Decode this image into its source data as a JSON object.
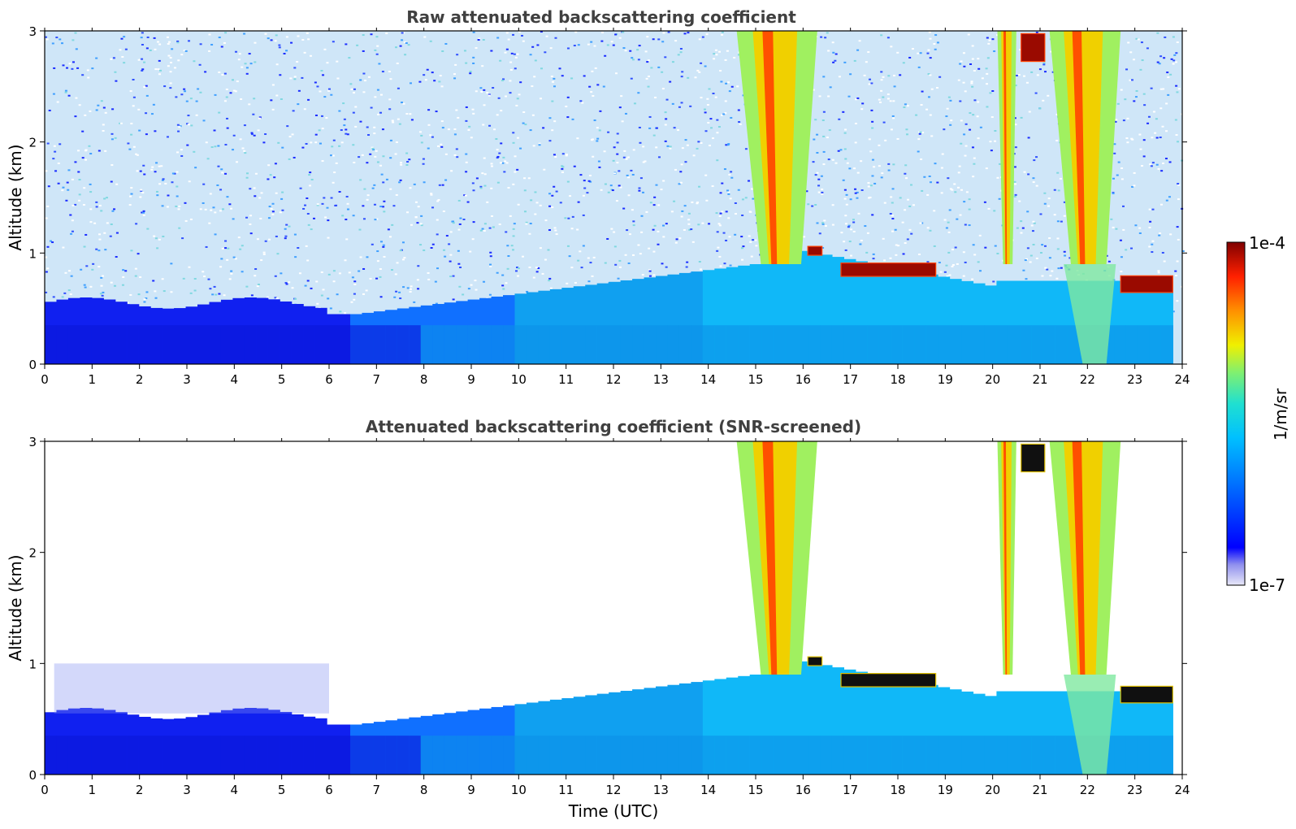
{
  "chart_data": [
    {
      "type": "heatmap",
      "title": "Raw attenuated backscattering coefficient",
      "xlabel": "",
      "ylabel": "Altitude (km)",
      "xlim": [
        0,
        24
      ],
      "ylim": [
        0,
        3
      ],
      "xticks": [
        0,
        1,
        2,
        3,
        4,
        5,
        6,
        7,
        8,
        9,
        10,
        11,
        12,
        13,
        14,
        15,
        16,
        17,
        18,
        19,
        20,
        21,
        22,
        23,
        24
      ],
      "yticks": [
        0,
        1,
        2,
        3
      ],
      "screened": false,
      "cloud_layers": [
        {
          "time_start": 16.1,
          "time_end": 16.4,
          "altitude": 1.02,
          "thickness": 0.08
        },
        {
          "time_start": 16.8,
          "time_end": 18.8,
          "altitude": 0.85,
          "thickness": 0.12
        },
        {
          "time_start": 22.7,
          "time_end": 23.8,
          "altitude": 0.72,
          "thickness": 0.15
        },
        {
          "time_start": 20.6,
          "time_end": 21.1,
          "altitude": 2.85,
          "thickness": 0.25
        }
      ],
      "precipitation_streaks": [
        {
          "time_start": 14.6,
          "time_end": 16.3,
          "altitude_top": 3.0
        },
        {
          "time_start": 20.1,
          "time_end": 20.5,
          "altitude_top": 3.0
        },
        {
          "time_start": 21.2,
          "time_end": 22.7,
          "altitude_top": 3.0
        }
      ]
    },
    {
      "type": "heatmap",
      "title": "Attenuated backscattering coefficient (SNR-screened)",
      "xlabel": "Time (UTC)",
      "ylabel": "Altitude (km)",
      "xlim": [
        0,
        24
      ],
      "ylim": [
        0,
        3
      ],
      "xticks": [
        0,
        1,
        2,
        3,
        4,
        5,
        6,
        7,
        8,
        9,
        10,
        11,
        12,
        13,
        14,
        15,
        16,
        17,
        18,
        19,
        20,
        21,
        22,
        23,
        24
      ],
      "yticks": [
        0,
        1,
        2,
        3
      ],
      "screened": true,
      "cloud_layers": [
        {
          "time_start": 16.1,
          "time_end": 16.4,
          "altitude": 1.02,
          "thickness": 0.08
        },
        {
          "time_start": 16.8,
          "time_end": 18.8,
          "altitude": 0.85,
          "thickness": 0.12
        },
        {
          "time_start": 22.7,
          "time_end": 23.8,
          "altitude": 0.72,
          "thickness": 0.15
        },
        {
          "time_start": 20.6,
          "time_end": 21.1,
          "altitude": 2.85,
          "thickness": 0.25
        }
      ],
      "precipitation_streaks": [
        {
          "time_start": 14.6,
          "time_end": 16.3,
          "altitude_top": 3.0
        },
        {
          "time_start": 20.1,
          "time_end": 20.5,
          "altitude_top": 3.0
        },
        {
          "time_start": 21.2,
          "time_end": 22.7,
          "altitude_top": 3.0
        }
      ]
    }
  ],
  "colorbar": {
    "label": "1/m/sr",
    "max_label": "1e-4",
    "min_label": "1e-7",
    "scale": "log",
    "colormap": "jet",
    "colors": [
      "#e8e8f8",
      "#b0b0f0",
      "#0000ff",
      "#0060ff",
      "#00b0ff",
      "#00e0e0",
      "#40f0a0",
      "#a0f050",
      "#f0f000",
      "#ffa000",
      "#ff4000",
      "#c00000",
      "#800000"
    ]
  }
}
